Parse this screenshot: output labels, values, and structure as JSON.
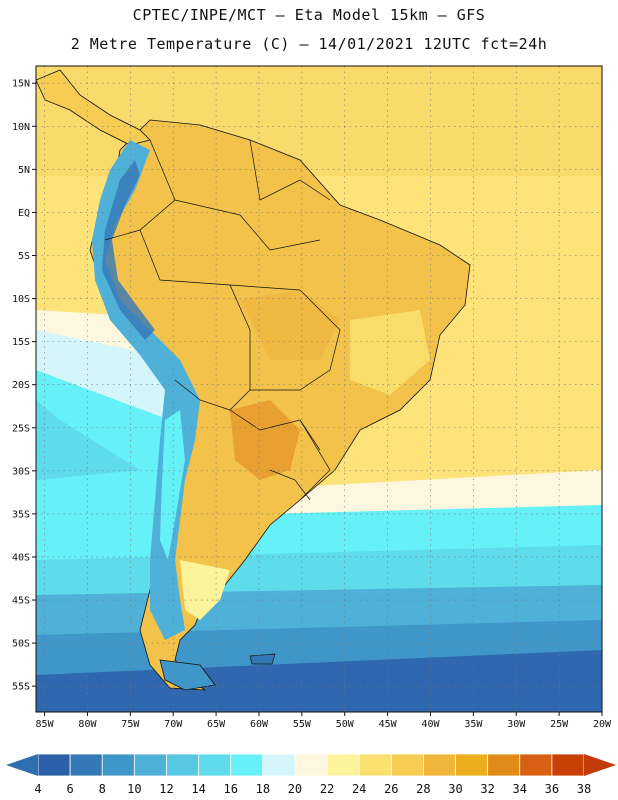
{
  "title": {
    "line1": "CPTEC/INPE/MCT –  Eta Model 15km – GFS",
    "line2": "2 Metre Temperature (C) – 14/01/2021 12UTC fct=24h"
  },
  "map": {
    "lon_ticks": [
      "85W",
      "80W",
      "75W",
      "70W",
      "65W",
      "60W",
      "55W",
      "50W",
      "45W",
      "40W",
      "35W",
      "30W",
      "25W",
      "20W"
    ],
    "lat_ticks": [
      "15N",
      "10N",
      "5N",
      "EQ",
      "5S",
      "10S",
      "15S",
      "20S",
      "25S",
      "30S",
      "35S",
      "40S",
      "45S",
      "50S",
      "55S"
    ],
    "lon_range": [
      -86,
      -20
    ],
    "lat_range": [
      17,
      -58
    ],
    "grid": true
  },
  "colorbar": {
    "labels": [
      "4",
      "6",
      "8",
      "10",
      "12",
      "14",
      "16",
      "18",
      "20",
      "22",
      "24",
      "26",
      "28",
      "30",
      "32",
      "34",
      "36",
      "38"
    ],
    "colors": [
      "#2b5fa8",
      "#3478b8",
      "#3f96c8",
      "#4fb0d8",
      "#56c8e3",
      "#5edcec",
      "#66f0f8",
      "#d4f6fb",
      "#fdf7e0",
      "#fdf39a",
      "#fbe070",
      "#f6cc52",
      "#f0b63a",
      "#ecae1c",
      "#e08a18",
      "#d86012",
      "#c84006"
    ],
    "under_color": "#2f6fb0",
    "over_color": "#c13a08"
  },
  "colors": {
    "ocean_warm": "#fde37a",
    "ocean_cool": "#5edcec",
    "land": "#f2c24a",
    "andes": "#4fb0d8"
  }
}
